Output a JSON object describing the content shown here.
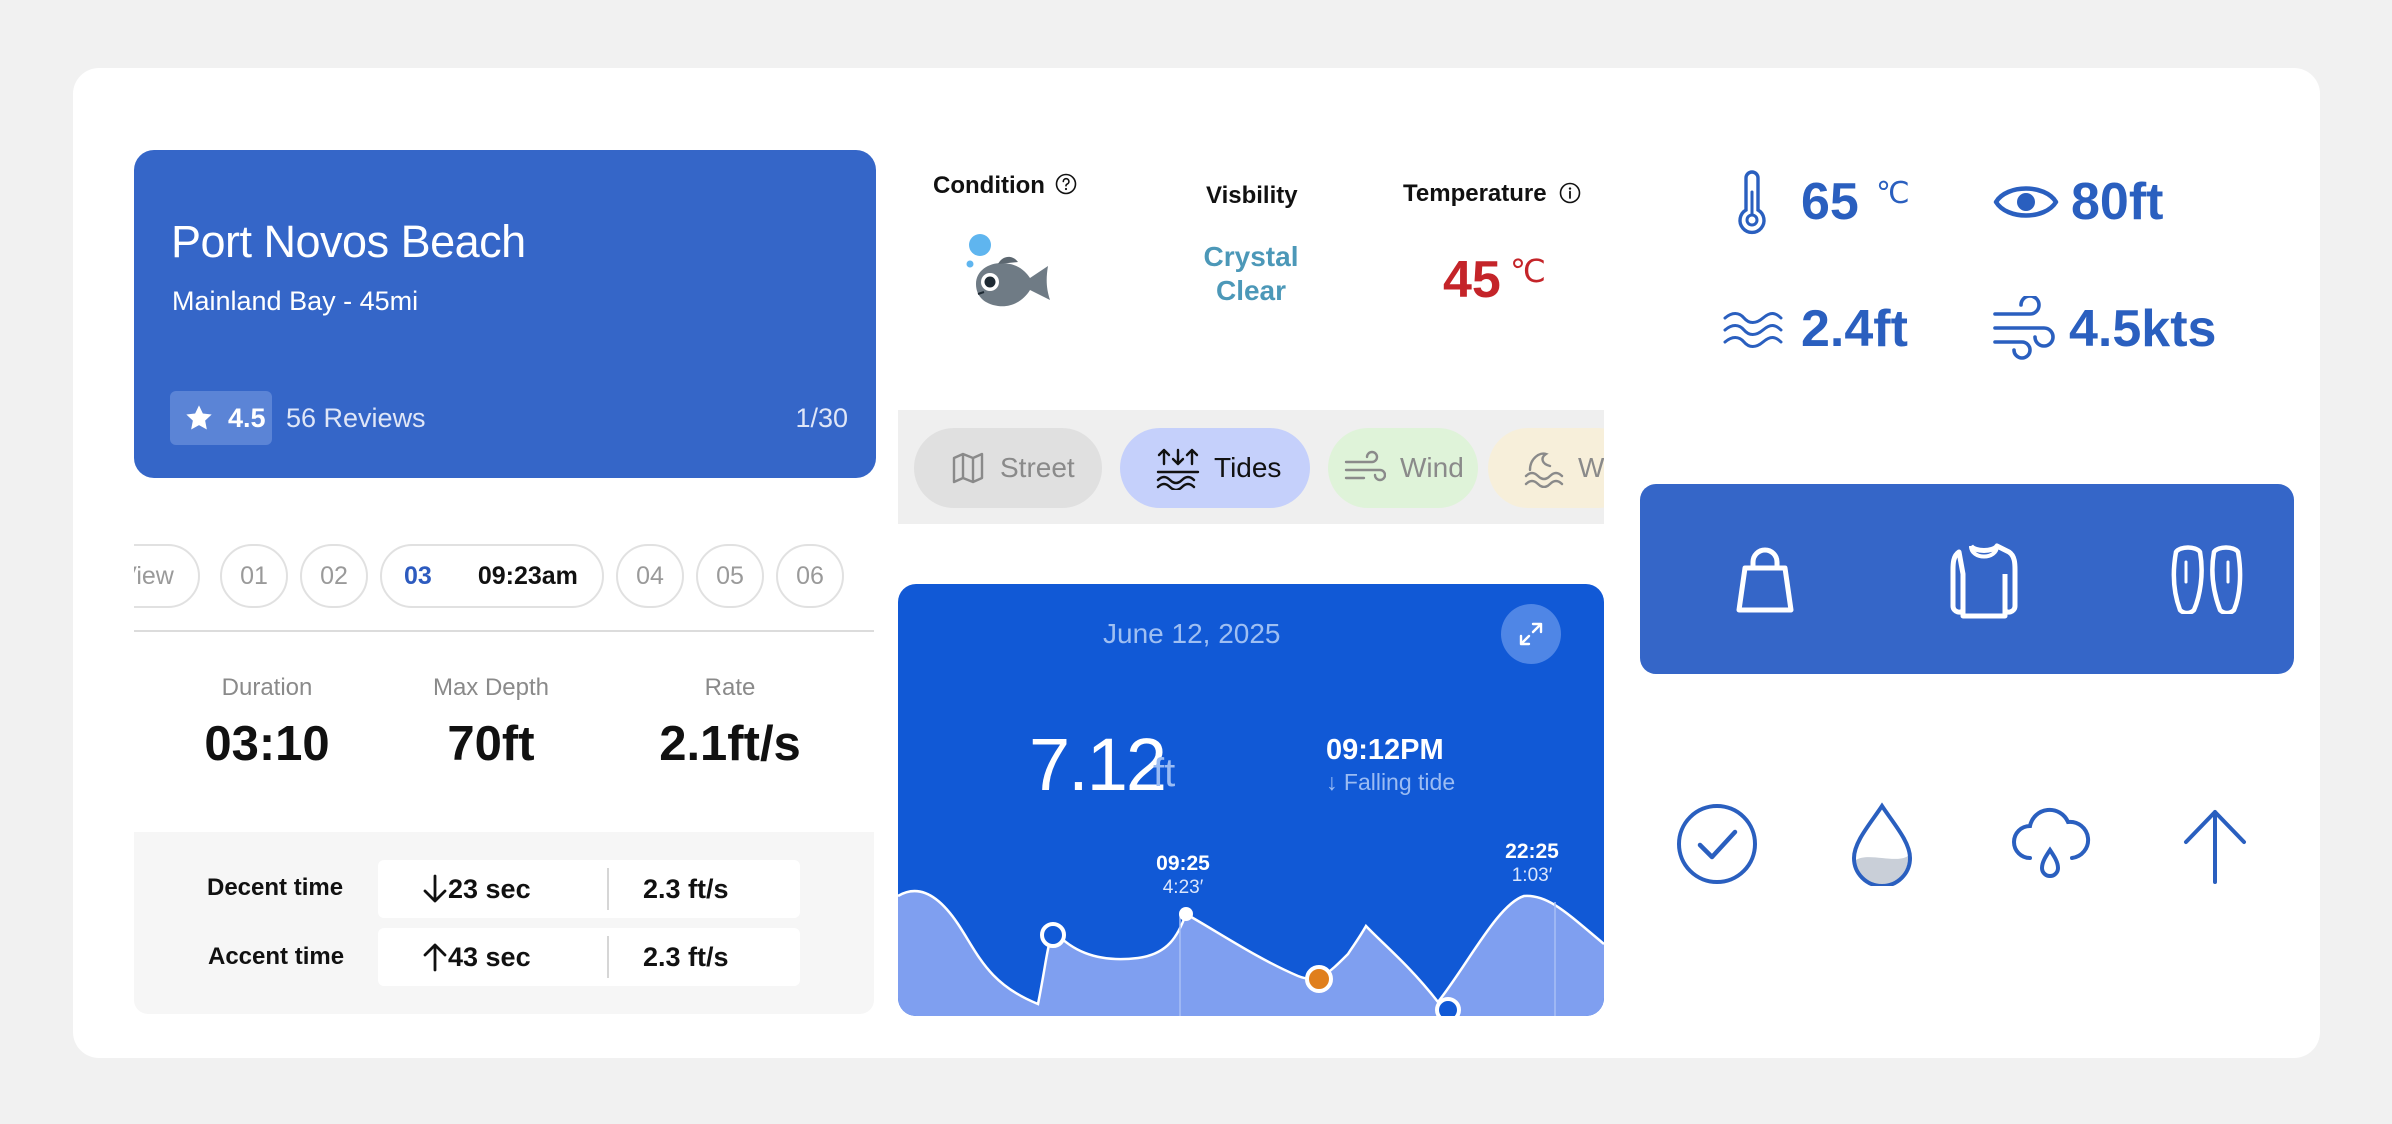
{
  "location": {
    "title": "Port Novos Beach",
    "subtitle": "Mainland Bay - 45mi",
    "rating": "4.5",
    "reviews": "56 Reviews",
    "page_counter": "1/30",
    "icons": [
      "star-icon"
    ]
  },
  "dive_tabs": {
    "items": [
      {
        "label": "View",
        "shown": "View"
      },
      {
        "label": "01"
      },
      {
        "label": "02"
      },
      {
        "label": "03",
        "time": "09:23am",
        "active": true
      },
      {
        "label": "04"
      },
      {
        "label": "05"
      },
      {
        "label": "06"
      }
    ]
  },
  "dive_stats": {
    "duration_label": "Duration",
    "duration": "03:10",
    "depth_label": "Max Depth",
    "depth": "70ft",
    "rate_label": "Rate",
    "rate": "2.1ft/s"
  },
  "times": {
    "descent_label": "Decent time",
    "descent_sec": "23 sec",
    "descent_rate": "2.3 ft/s",
    "ascent_label": "Accent time",
    "ascent_sec": "43 sec",
    "ascent_rate": "2.3 ft/s"
  },
  "conditions": {
    "condition_label": "Condition",
    "visibility_label": "Visbility",
    "visibility_value_line1": "Crystal",
    "visibility_value_line2": "Clear",
    "temperature_label": "Temperature",
    "temperature_value": "45",
    "temperature_unit": "℃",
    "icons": [
      "help-icon",
      "fish-icon",
      "info-icon"
    ]
  },
  "map_tabs": [
    {
      "label": "Street",
      "icon": "map-icon",
      "bg": "#e0e0e0"
    },
    {
      "label": "Tides",
      "icon": "tides-icon",
      "bg": "#c5d0fb",
      "active": true
    },
    {
      "label": "Wind",
      "icon": "wind-icon",
      "bg": "#dff3d9"
    },
    {
      "label": "W",
      "icon": "waves-icon",
      "bg": "#f7efda"
    }
  ],
  "tide": {
    "date": "June 12, 2025",
    "height_value": "7.12",
    "height_unit": "ft",
    "time": "09:12PM",
    "trend": "↓ Falling tide",
    "label_a_time": "09:25",
    "label_a_value": "4:23′",
    "label_b_time": "22:25",
    "label_b_value": "1:03′",
    "colors": {
      "card": "#1159d6",
      "area": "#7f9ff0",
      "marker_orange": "#e07f1c"
    },
    "icons": [
      "expand-icon"
    ]
  },
  "metrics": {
    "temp_value": "65",
    "temp_unit": "℃",
    "visibility_value": "80ft",
    "wave_value": "2.4ft",
    "wind_value": "4.5kts",
    "icons": [
      "thermometer-icon",
      "eye-icon",
      "waves-icon",
      "wind-icon"
    ]
  },
  "gear": {
    "icons": [
      "bag-icon",
      "wetsuit-icon",
      "fins-icon"
    ]
  },
  "status_icons": [
    "check-circle-icon",
    "water-drop-icon",
    "cloud-rain-icon",
    "arrow-up-icon"
  ],
  "accent_color": "#3566c8"
}
